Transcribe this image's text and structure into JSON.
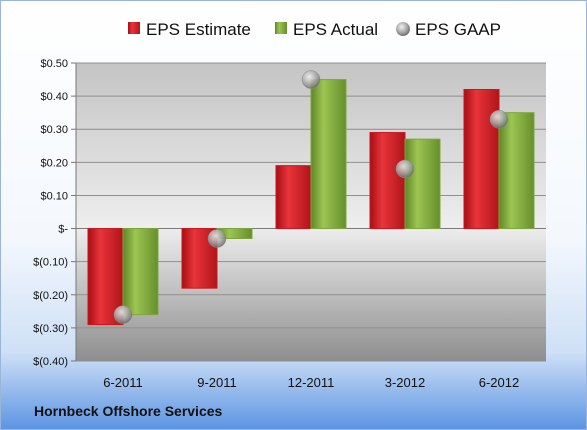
{
  "company": "Hornbeck Offshore Services",
  "colors": {
    "estimate": "#c8171e",
    "actual": "#7ea63a",
    "gaap": "#b3b3b3"
  },
  "chart_data": {
    "type": "bar",
    "categories": [
      "6-2011",
      "9-2011",
      "12-2011",
      "3-2012",
      "6-2012"
    ],
    "series": [
      {
        "name": "EPS Estimate",
        "kind": "bar",
        "values": [
          -0.29,
          -0.18,
          0.19,
          0.29,
          0.42
        ]
      },
      {
        "name": "EPS Actual",
        "kind": "bar",
        "values": [
          -0.26,
          -0.03,
          0.45,
          0.27,
          0.35
        ]
      },
      {
        "name": "EPS GAAP",
        "kind": "marker",
        "values": [
          -0.26,
          -0.03,
          0.45,
          0.18,
          0.33
        ]
      }
    ],
    "yticks": [
      0.5,
      0.4,
      0.3,
      0.2,
      0.1,
      0,
      -0.1,
      -0.2,
      -0.3,
      -0.4
    ],
    "ytick_labels": [
      "$0.50",
      "$0.40",
      "$0.30",
      "$0.20",
      "$0.10",
      "$-",
      "$(0.10)",
      "$(0.20)",
      "$(0.30)",
      "$(0.40)"
    ],
    "ylim": [
      -0.4,
      0.5
    ],
    "legend_position": "top",
    "grid": true
  }
}
